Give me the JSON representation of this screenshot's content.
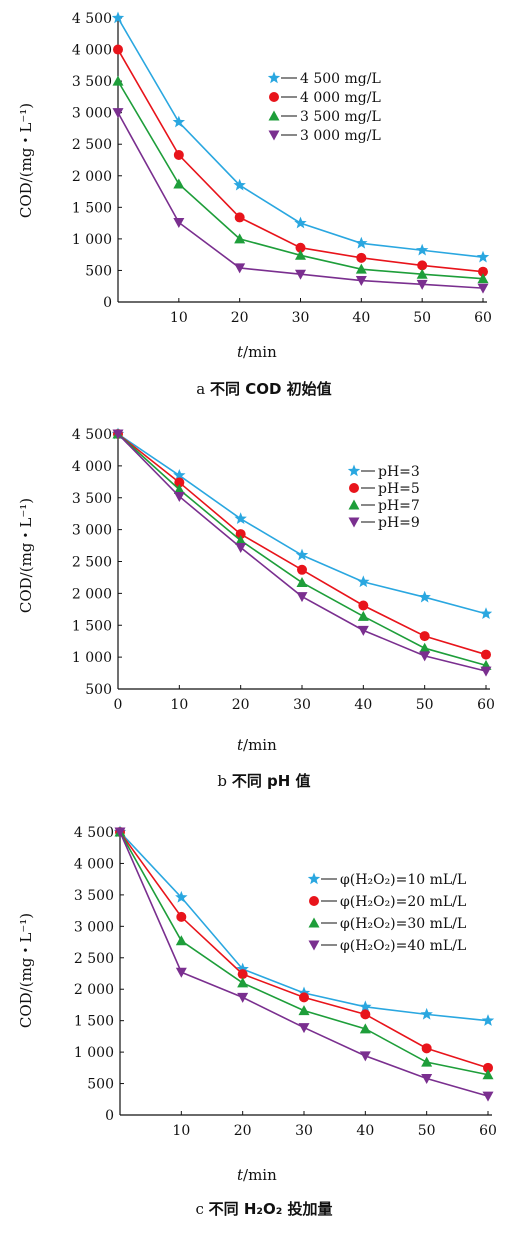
{
  "chart_data": [
    {
      "type": "line",
      "caption_letter": "a",
      "caption_text": "不同 COD 初始值",
      "ylabel": "COD/(mg・L⁻¹)",
      "xlabel_var": "t",
      "xlabel_unit": "/min",
      "x": [
        0,
        10,
        20,
        30,
        40,
        50,
        60
      ],
      "xticks": [
        "",
        "10",
        "20",
        "30",
        "40",
        "50",
        "60"
      ],
      "ylim": [
        0,
        4500
      ],
      "yticks": [
        0,
        500,
        1000,
        1500,
        2000,
        2500,
        3000,
        3500,
        4000,
        4500
      ],
      "ytick_labels": [
        "0",
        "500",
        "1 000",
        "1 500",
        "2 000",
        "2 500",
        "3 000",
        "3 500",
        "4 000",
        "4 500"
      ],
      "legend_position": "right-middle",
      "series": [
        {
          "name": "4 500 mg/L",
          "marker": "star",
          "color": "#2aa7e0",
          "values": [
            4500,
            2850,
            1850,
            1250,
            930,
            820,
            710
          ]
        },
        {
          "name": "4 000 mg/L",
          "marker": "circle",
          "color": "#e8141b",
          "values": [
            4000,
            2330,
            1340,
            860,
            700,
            580,
            480
          ]
        },
        {
          "name": "3 500 mg/L",
          "marker": "triangle-up",
          "color": "#1e9e3a",
          "values": [
            3500,
            1870,
            1000,
            740,
            520,
            440,
            370
          ]
        },
        {
          "name": "3 000 mg/L",
          "marker": "triangle-down",
          "color": "#7a2f8f",
          "values": [
            3000,
            1260,
            540,
            440,
            340,
            280,
            220
          ]
        }
      ]
    },
    {
      "type": "line",
      "caption_letter": "b",
      "caption_text": "不同 pH 值",
      "ylabel": "COD/(mg・L⁻¹)",
      "xlabel_var": "t",
      "xlabel_unit": "/min",
      "x": [
        0,
        10,
        20,
        30,
        40,
        50,
        60
      ],
      "xticks": [
        "0",
        "10",
        "20",
        "30",
        "40",
        "50",
        "60"
      ],
      "ylim": [
        500,
        4500
      ],
      "yticks": [
        500,
        1000,
        1500,
        2000,
        2500,
        3000,
        3500,
        4000,
        4500
      ],
      "ytick_labels": [
        "500",
        "1 000",
        "1 500",
        "2 000",
        "2 500",
        "3 000",
        "3 500",
        "4 000",
        "4 500"
      ],
      "legend_position": "top-right",
      "series": [
        {
          "name": "pH=3",
          "marker": "star",
          "color": "#2aa7e0",
          "values": [
            4500,
            3850,
            3170,
            2600,
            2180,
            1940,
            1680
          ]
        },
        {
          "name": "pH=5",
          "marker": "circle",
          "color": "#e8141b",
          "values": [
            4500,
            3740,
            2930,
            2370,
            1810,
            1330,
            1040
          ]
        },
        {
          "name": "pH=7",
          "marker": "triangle-up",
          "color": "#1e9e3a",
          "values": [
            4500,
            3630,
            2830,
            2170,
            1640,
            1140,
            870
          ]
        },
        {
          "name": "pH=9",
          "marker": "triangle-down",
          "color": "#7a2f8f",
          "values": [
            4500,
            3520,
            2720,
            1950,
            1420,
            1020,
            780
          ]
        }
      ]
    },
    {
      "type": "line",
      "caption_letter": "c",
      "caption_text": "不同 H₂O₂ 投加量",
      "ylabel": "COD/(mg・L⁻¹)",
      "xlabel_var": "t",
      "xlabel_unit": "/min",
      "x": [
        0,
        10,
        20,
        30,
        40,
        50,
        60
      ],
      "xticks": [
        "",
        "10",
        "20",
        "30",
        "40",
        "50",
        "60"
      ],
      "ylim": [
        0,
        4500
      ],
      "yticks": [
        0,
        500,
        1000,
        1500,
        2000,
        2500,
        3000,
        3500,
        4000,
        4500
      ],
      "ytick_labels": [
        "0",
        "500",
        "1 000",
        "1 500",
        "2 000",
        "2 500",
        "3 000",
        "3 500",
        "4 000",
        "4 500"
      ],
      "legend_position": "top-right",
      "series": [
        {
          "name": "φ(H₂O₂)=10 mL/L",
          "marker": "star",
          "color": "#2aa7e0",
          "values": [
            4500,
            3460,
            2320,
            1940,
            1720,
            1600,
            1500
          ]
        },
        {
          "name": "φ(H₂O₂)=20 mL/L",
          "marker": "circle",
          "color": "#e8141b",
          "values": [
            4500,
            3150,
            2240,
            1870,
            1600,
            1060,
            750
          ]
        },
        {
          "name": "φ(H₂O₂)=30 mL/L",
          "marker": "triangle-up",
          "color": "#1e9e3a",
          "values": [
            4500,
            2770,
            2100,
            1660,
            1370,
            840,
            640
          ]
        },
        {
          "name": "φ(H₂O₂)=40 mL/L",
          "marker": "triangle-down",
          "color": "#7a2f8f",
          "values": [
            4500,
            2270,
            1870,
            1390,
            940,
            580,
            300
          ]
        }
      ]
    }
  ]
}
